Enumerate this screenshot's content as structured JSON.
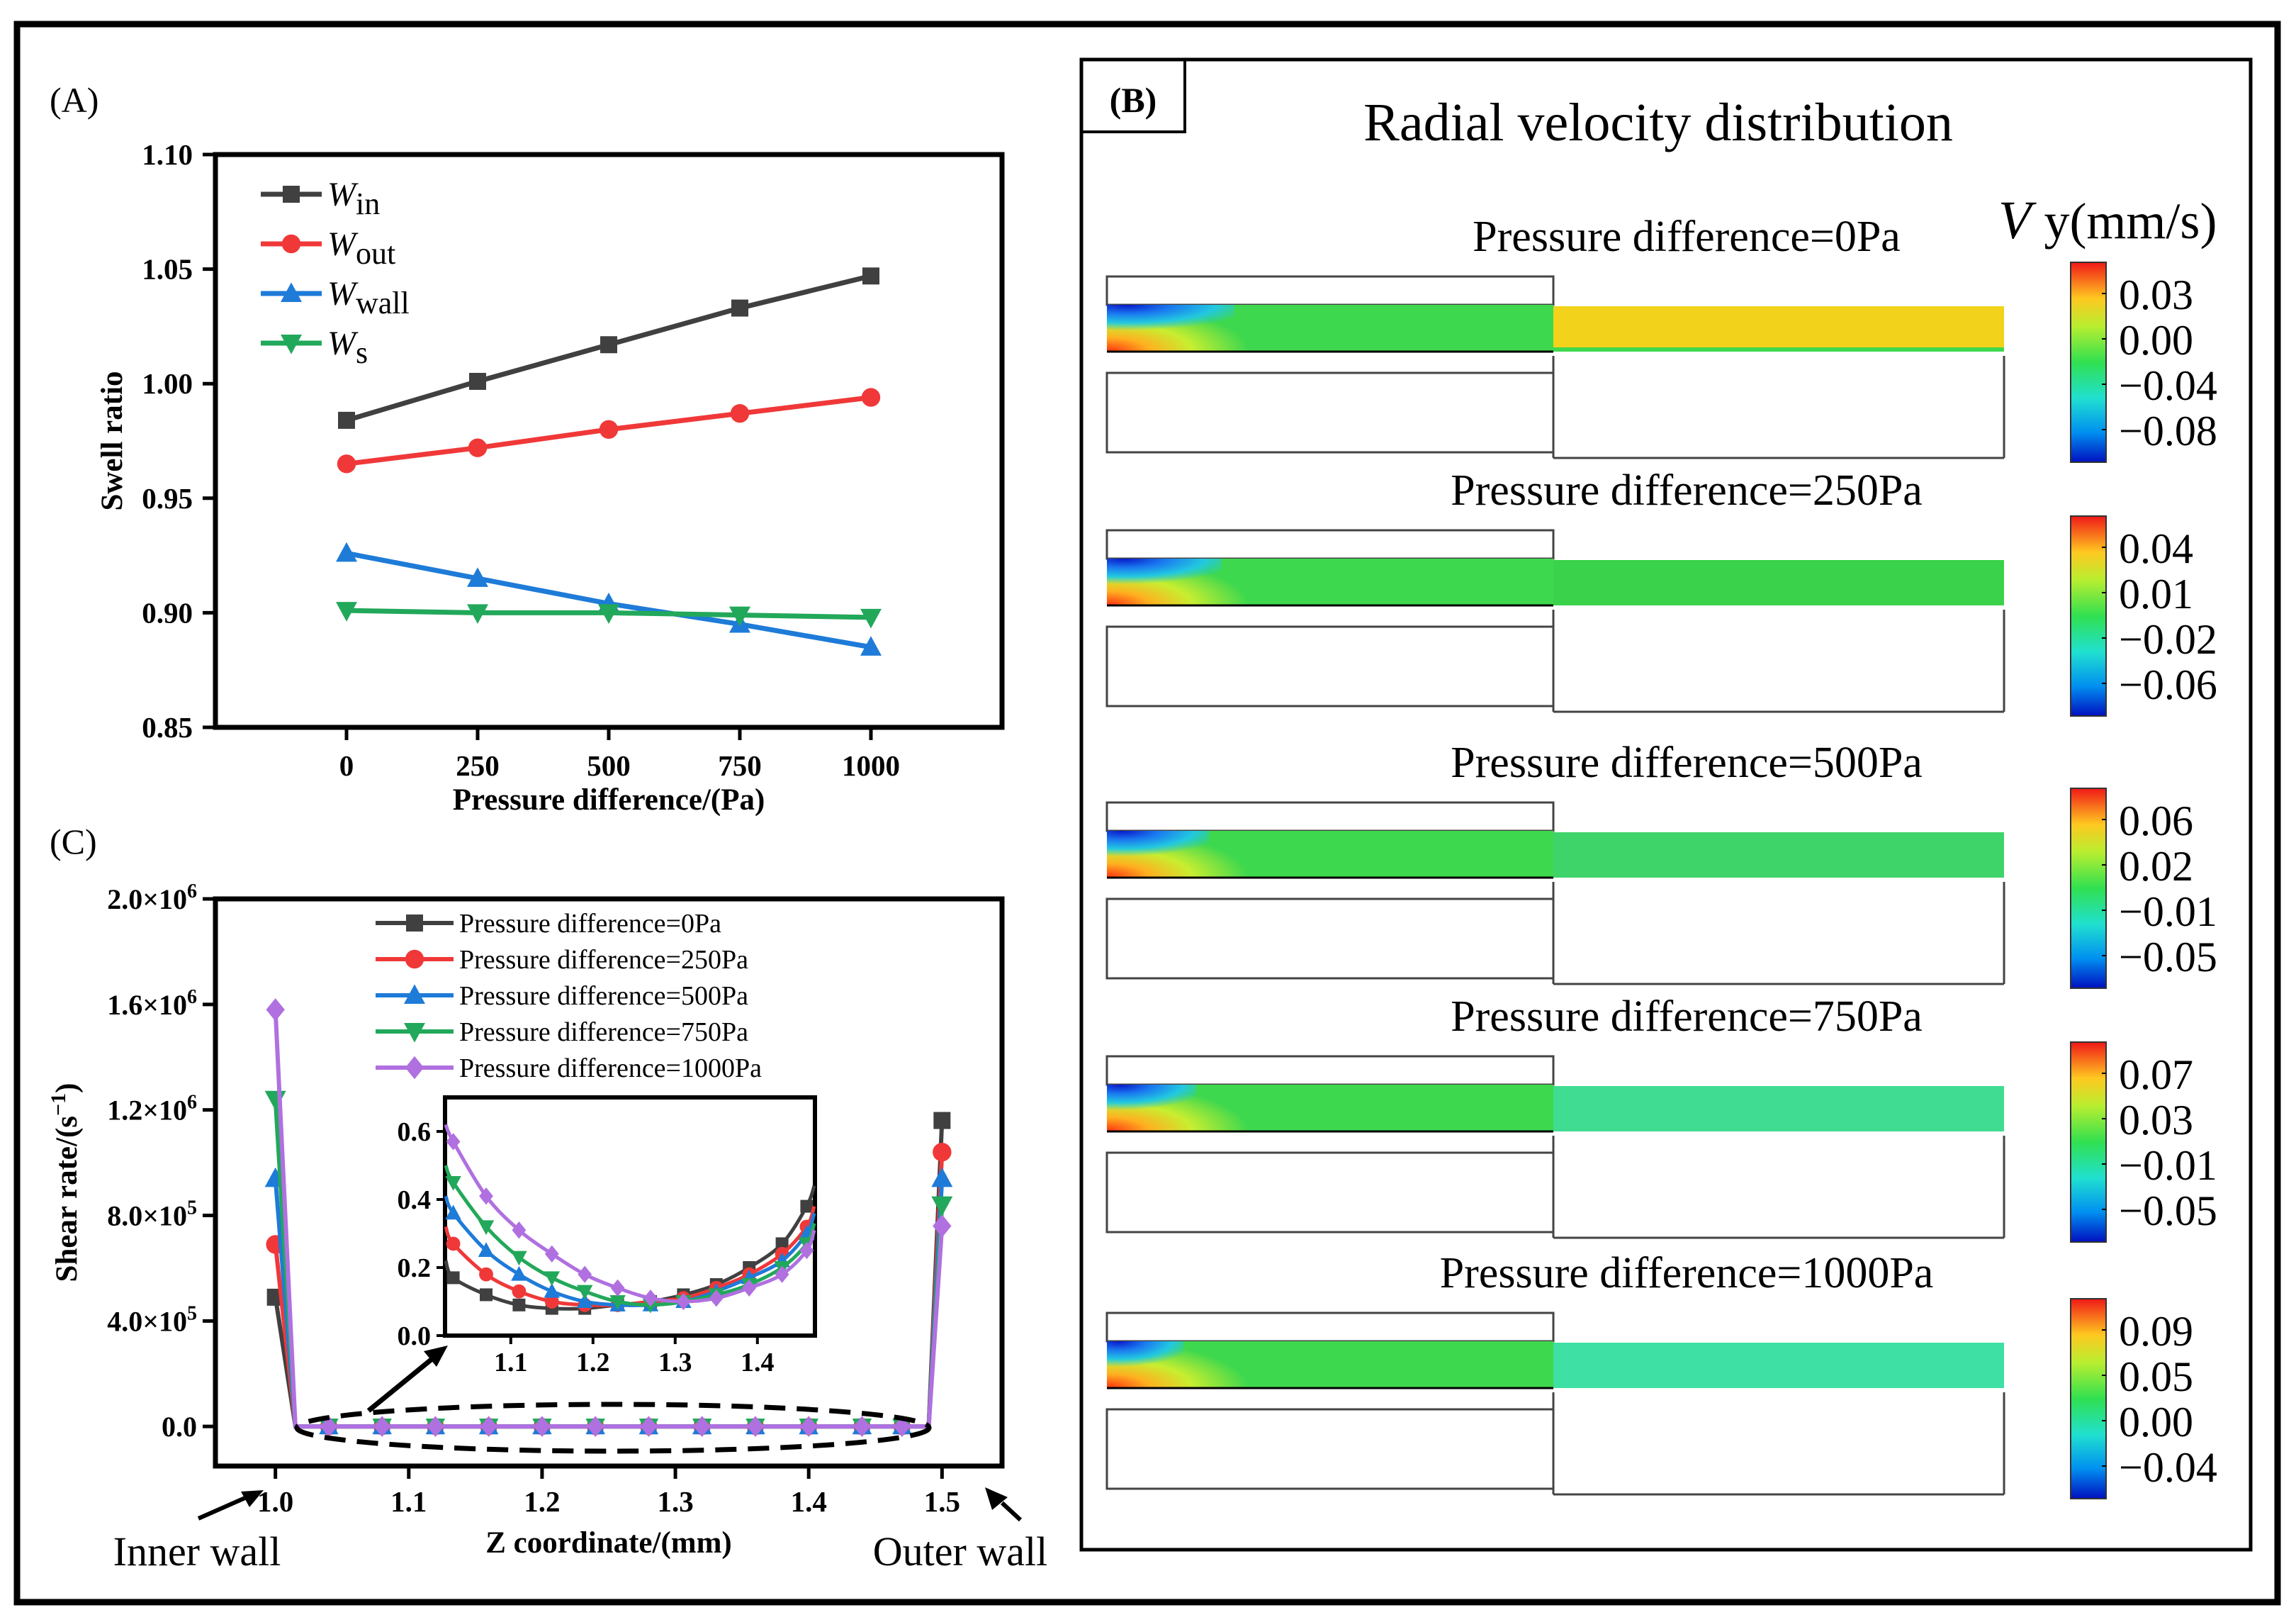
{
  "figure": {
    "panel_a_label": "(A)",
    "panel_b_label": "(B)",
    "panel_c_label": "(C)"
  },
  "chart_data": [
    {
      "panel": "A",
      "type": "line",
      "xlabel": "Pressure difference/(Pa)",
      "ylabel": "Swell ratio",
      "x": [
        0,
        250,
        500,
        750,
        1000
      ],
      "xlim": [
        -250,
        1250
      ],
      "ylim": [
        0.85,
        1.1
      ],
      "xticks": [
        "0",
        "250",
        "500",
        "750",
        "1000"
      ],
      "yticks": [
        "0.85",
        "0.90",
        "0.95",
        "1.00",
        "1.05",
        "1.10"
      ],
      "legend_position": "top-left",
      "series": [
        {
          "name": "W",
          "sub": "in",
          "color": "#404040",
          "marker": "square",
          "values": [
            0.984,
            1.001,
            1.017,
            1.033,
            1.047
          ]
        },
        {
          "name": "W",
          "sub": "out",
          "color": "#f03838",
          "marker": "circle",
          "values": [
            0.965,
            0.972,
            0.98,
            0.987,
            0.994
          ]
        },
        {
          "name": "W",
          "sub": "wall",
          "color": "#1e7bd8",
          "marker": "triangle-up",
          "values": [
            0.926,
            0.915,
            0.904,
            0.895,
            0.885
          ]
        },
        {
          "name": "W",
          "sub": "s",
          "color": "#22a85a",
          "marker": "triangle-down",
          "values": [
            0.901,
            0.9,
            0.9,
            0.899,
            0.898
          ]
        }
      ]
    },
    {
      "panel": "B",
      "type": "heatmap",
      "title": "Radial velocity distribution",
      "colorbar_title_sym": "V",
      "colorbar_title_unit": "y(mm/s)",
      "maps": [
        {
          "label": "Pressure difference=0Pa",
          "ticks": [
            "0.03",
            "0.00",
            "−0.04",
            "−0.08"
          ],
          "channel_color": "#f2d21a"
        },
        {
          "label": "Pressure difference=250Pa",
          "ticks": [
            "0.04",
            "0.01",
            "−0.02",
            "−0.06"
          ],
          "channel_color": "#3ad24a"
        },
        {
          "label": "Pressure difference=500Pa",
          "ticks": [
            "0.06",
            "0.02",
            "−0.01",
            "−0.05"
          ],
          "channel_color": "#3ed46a"
        },
        {
          "label": "Pressure difference=750Pa",
          "ticks": [
            "0.07",
            "0.03",
            "−0.01",
            "−0.05"
          ],
          "channel_color": "#40dc92"
        },
        {
          "label": "Pressure difference=1000Pa",
          "ticks": [
            "0.09",
            "0.05",
            "0.00",
            "−0.04"
          ],
          "channel_color": "#3ee0a4"
        }
      ]
    },
    {
      "panel": "C",
      "type": "line",
      "xlabel": "Z coordinate/(mm)",
      "ylabel_main": "Shear rate/(s",
      "ylabel_sup": "−1",
      "ylabel_end": ")",
      "xlim": [
        0.955,
        1.545
      ],
      "ylim": [
        -150000.0,
        2000000.0
      ],
      "xticks": [
        "1.0",
        "1.1",
        "1.2",
        "1.3",
        "1.4",
        "1.5"
      ],
      "yticks": [
        {
          "m": "0.0",
          "e": ""
        },
        {
          "m": "4.0×10",
          "e": "5"
        },
        {
          "m": "8.0×10",
          "e": "5"
        },
        {
          "m": "1.2×10",
          "e": "6"
        },
        {
          "m": "1.6×10",
          "e": "6"
        },
        {
          "m": "2.0×10",
          "e": "6"
        }
      ],
      "annotations": {
        "left": "Inner wall",
        "right": "Outer wall"
      },
      "legend_position": "top-center",
      "mid_x": [
        1.04,
        1.08,
        1.12,
        1.16,
        1.2,
        1.24,
        1.28,
        1.32,
        1.36,
        1.4,
        1.44,
        1.47
      ],
      "series": [
        {
          "name": "Pressure difference=0Pa",
          "color": "#404040",
          "marker": "square",
          "inner": 490000,
          "outer": 1160000
        },
        {
          "name": "Pressure difference=250Pa",
          "color": "#f03838",
          "marker": "circle",
          "inner": 690000,
          "outer": 1040000
        },
        {
          "name": "Pressure difference=500Pa",
          "color": "#1e7bd8",
          "marker": "triangle-up",
          "inner": 940000,
          "outer": 940000
        },
        {
          "name": "Pressure difference=750Pa",
          "color": "#22a85a",
          "marker": "triangle-down",
          "inner": 1240000,
          "outer": 840000
        },
        {
          "name": "Pressure difference=1000Pa",
          "color": "#b070e0",
          "marker": "diamond",
          "inner": 1580000,
          "outer": 760000
        }
      ],
      "inset": {
        "x": [
          1.03,
          1.07,
          1.11,
          1.15,
          1.19,
          1.23,
          1.27,
          1.31,
          1.35,
          1.39,
          1.43,
          1.46
        ],
        "xlim": [
          1.02,
          1.47
        ],
        "ylim": [
          0.0,
          0.7
        ],
        "xticks": [
          "1.1",
          "1.2",
          "1.3",
          "1.4"
        ],
        "yticks": [
          "0.0",
          "0.2",
          "0.4",
          "0.6"
        ],
        "series_values": [
          [
            0.17,
            0.12,
            0.09,
            0.08,
            0.08,
            0.09,
            0.1,
            0.12,
            0.15,
            0.2,
            0.27,
            0.38
          ],
          [
            0.27,
            0.18,
            0.13,
            0.1,
            0.09,
            0.09,
            0.1,
            0.11,
            0.14,
            0.18,
            0.24,
            0.32
          ],
          [
            0.36,
            0.25,
            0.18,
            0.13,
            0.1,
            0.09,
            0.09,
            0.1,
            0.13,
            0.17,
            0.22,
            0.3
          ],
          [
            0.45,
            0.32,
            0.23,
            0.17,
            0.13,
            0.1,
            0.09,
            0.1,
            0.12,
            0.15,
            0.2,
            0.27
          ],
          [
            0.57,
            0.41,
            0.31,
            0.24,
            0.18,
            0.14,
            0.11,
            0.1,
            0.11,
            0.14,
            0.18,
            0.25
          ]
        ]
      }
    }
  ]
}
